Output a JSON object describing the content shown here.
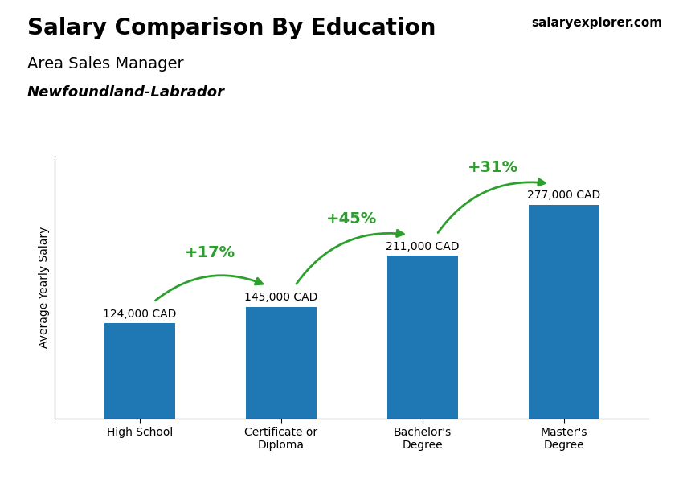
{
  "chart_data": {
    "type": "bar",
    "title": "Salary Comparison By Education",
    "subtitle": "Area Sales Manager",
    "annotations": [
      "Newfoundland-Labrador",
      "salaryexplorer.com"
    ],
    "ylabel": "Average Yearly Salary",
    "categories": [
      "High School",
      "Certificate or\nDiploma",
      "Bachelor's\nDegree",
      "Master's\nDegree"
    ],
    "values": [
      124000,
      145000,
      211000,
      277000
    ],
    "value_labels": [
      "124,000 CAD",
      "145,000 CAD",
      "211,000 CAD",
      "277,000 CAD"
    ],
    "data_labels": true,
    "change_labels": [
      "+17%",
      "+45%",
      "+31%"
    ],
    "ylim": [
      0,
      340000
    ],
    "tick_labels": "x"
  }
}
